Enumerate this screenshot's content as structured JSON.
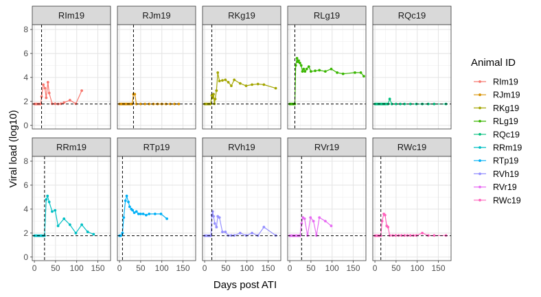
{
  "chart_data": {
    "type": "line",
    "facet": "wrap",
    "xlabel": "Days post ATI",
    "ylabel": "Viral load (log10)",
    "xlim": [
      -5,
      180
    ],
    "ylim": [
      -0.3,
      8.4
    ],
    "x_ticks": [
      0,
      50,
      100,
      150
    ],
    "x_tick_labels": [
      "0",
      "50",
      "100",
      "150"
    ],
    "y_ticks": [
      0,
      2,
      4,
      6,
      8
    ],
    "y_tick_labels": [
      "0",
      "2",
      "4",
      "6",
      "8"
    ],
    "threshold_y": 1.78,
    "legend": {
      "title": "Animal ID",
      "position": "right"
    },
    "series": [
      {
        "name": "RIm19",
        "color": "#F8766D",
        "vline_x": 17,
        "x": [
          0,
          3,
          6,
          9,
          12,
          15,
          17,
          21,
          25,
          28,
          32,
          35,
          42,
          49,
          56,
          63,
          70,
          84,
          98,
          112
        ],
        "y": [
          1.78,
          1.78,
          1.78,
          1.78,
          1.78,
          1.78,
          2.4,
          3.4,
          3.1,
          2.3,
          3.6,
          2.7,
          1.8,
          1.8,
          1.78,
          1.8,
          1.9,
          2.1,
          1.8,
          2.9
        ]
      },
      {
        "name": "RJm19",
        "color": "#D89000",
        "vline_x": 33,
        "x": [
          0,
          3,
          6,
          9,
          12,
          15,
          18,
          21,
          24,
          27,
          30,
          33,
          36,
          40,
          50,
          60,
          70,
          80,
          90,
          100,
          110,
          120,
          130,
          140
        ],
        "y": [
          1.78,
          1.78,
          1.78,
          1.78,
          1.78,
          1.78,
          1.78,
          1.78,
          1.78,
          1.78,
          1.78,
          2.6,
          2.6,
          1.78,
          1.78,
          1.78,
          1.78,
          1.78,
          1.78,
          1.78,
          1.78,
          1.78,
          1.78,
          1.78
        ]
      },
      {
        "name": "RKg19",
        "color": "#A3A500",
        "vline_x": 17,
        "x": [
          0,
          3,
          6,
          9,
          12,
          14,
          17,
          19,
          21,
          23,
          25,
          28,
          31,
          35,
          42,
          49,
          56,
          63,
          70,
          84,
          98,
          112,
          126,
          140,
          168
        ],
        "y": [
          1.78,
          1.78,
          1.78,
          1.78,
          1.78,
          1.78,
          2.5,
          2.3,
          2.6,
          1.8,
          2.2,
          2.9,
          4.4,
          3.7,
          3.75,
          3.8,
          3.6,
          3.3,
          3.8,
          3.5,
          3.3,
          3.4,
          3.45,
          3.4,
          3.1
        ]
      },
      {
        "name": "RLg19",
        "color": "#39B600",
        "vline_x": 12,
        "x": [
          0,
          3,
          6,
          9,
          12,
          14,
          17,
          19,
          21,
          24,
          27,
          30,
          33,
          36,
          40,
          45,
          50,
          60,
          70,
          84,
          98,
          112,
          126,
          154,
          168,
          175
        ],
        "y": [
          1.78,
          1.78,
          1.78,
          1.78,
          1.78,
          5.0,
          5.6,
          5.3,
          5.4,
          5.2,
          5.0,
          4.5,
          4.7,
          4.5,
          4.7,
          4.9,
          4.5,
          4.55,
          4.6,
          4.5,
          4.7,
          4.4,
          4.3,
          4.4,
          4.4,
          4.1
        ]
      },
      {
        "name": "RQc19",
        "color": "#00BF7D",
        "vline_x": null,
        "x": [
          0,
          3,
          6,
          9,
          12,
          15,
          18,
          21,
          24,
          28,
          31,
          35,
          40,
          50,
          60,
          70,
          84,
          98,
          112,
          126,
          140,
          168
        ],
        "y": [
          1.78,
          1.78,
          1.78,
          1.78,
          1.78,
          1.78,
          1.78,
          1.78,
          1.78,
          1.78,
          1.78,
          2.2,
          1.78,
          1.78,
          1.78,
          1.78,
          1.78,
          1.78,
          1.78,
          1.78,
          1.78,
          1.78
        ]
      },
      {
        "name": "RRm19",
        "color": "#00BFC4",
        "vline_x": 24,
        "x": [
          0,
          3,
          6,
          9,
          12,
          15,
          18,
          21,
          24,
          28,
          31,
          35,
          42,
          49,
          56,
          70,
          84,
          98,
          112,
          126,
          140
        ],
        "y": [
          1.78,
          1.78,
          1.78,
          1.78,
          1.78,
          1.78,
          1.78,
          1.78,
          1.78,
          4.8,
          5.1,
          4.6,
          3.8,
          3.9,
          2.6,
          3.2,
          2.7,
          2.0,
          2.7,
          2.1,
          1.9
        ]
      },
      {
        "name": "RTp19",
        "color": "#00B0F6",
        "vline_x": 7,
        "x": [
          0,
          3,
          7,
          10,
          14,
          17,
          21,
          24,
          28,
          31,
          35,
          40,
          45,
          50,
          56,
          63,
          70,
          84,
          98,
          112
        ],
        "y": [
          1.78,
          1.78,
          2.0,
          3.3,
          4.7,
          5.1,
          4.6,
          4.2,
          4.0,
          3.9,
          3.7,
          3.8,
          3.6,
          3.6,
          3.6,
          3.5,
          3.6,
          3.6,
          3.6,
          3.2
        ]
      },
      {
        "name": "RVh19",
        "color": "#9590FF",
        "vline_x": 17,
        "x": [
          0,
          3,
          6,
          9,
          12,
          15,
          17,
          19,
          21,
          24,
          28,
          31,
          35,
          42,
          49,
          56,
          63,
          70,
          84,
          98,
          112,
          126,
          140,
          168
        ],
        "y": [
          1.78,
          1.78,
          1.78,
          1.78,
          1.78,
          1.78,
          3.5,
          3.8,
          3.4,
          2.8,
          2.5,
          3.4,
          3.3,
          2.1,
          2.1,
          1.8,
          1.8,
          1.8,
          2.0,
          1.8,
          2.0,
          1.8,
          2.5,
          1.8
        ]
      },
      {
        "name": "RVr19",
        "color": "#E76BF3",
        "vline_x": 28,
        "x": [
          0,
          3,
          6,
          9,
          12,
          15,
          18,
          21,
          24,
          28,
          31,
          35,
          42,
          49,
          56,
          63,
          70,
          84,
          98
        ],
        "y": [
          1.78,
          1.78,
          1.78,
          1.78,
          1.78,
          1.78,
          1.78,
          1.78,
          1.78,
          2.8,
          3.3,
          3.2,
          1.8,
          3.3,
          3.0,
          1.8,
          3.3,
          3.0,
          2.6
        ]
      },
      {
        "name": "RWc19",
        "color": "#FF62BC",
        "vline_x": 14,
        "x": [
          0,
          3,
          6,
          9,
          12,
          14,
          17,
          21,
          24,
          28,
          31,
          35,
          42,
          49,
          56,
          63,
          70,
          77,
          84,
          91,
          98,
          112,
          126,
          140,
          168
        ],
        "y": [
          1.78,
          1.78,
          1.78,
          1.78,
          1.78,
          1.78,
          3.0,
          3.6,
          3.5,
          2.6,
          2.5,
          1.8,
          1.8,
          1.8,
          1.8,
          1.8,
          1.8,
          1.8,
          1.8,
          1.8,
          1.8,
          2.0,
          1.8,
          1.8,
          1.8
        ]
      }
    ]
  }
}
